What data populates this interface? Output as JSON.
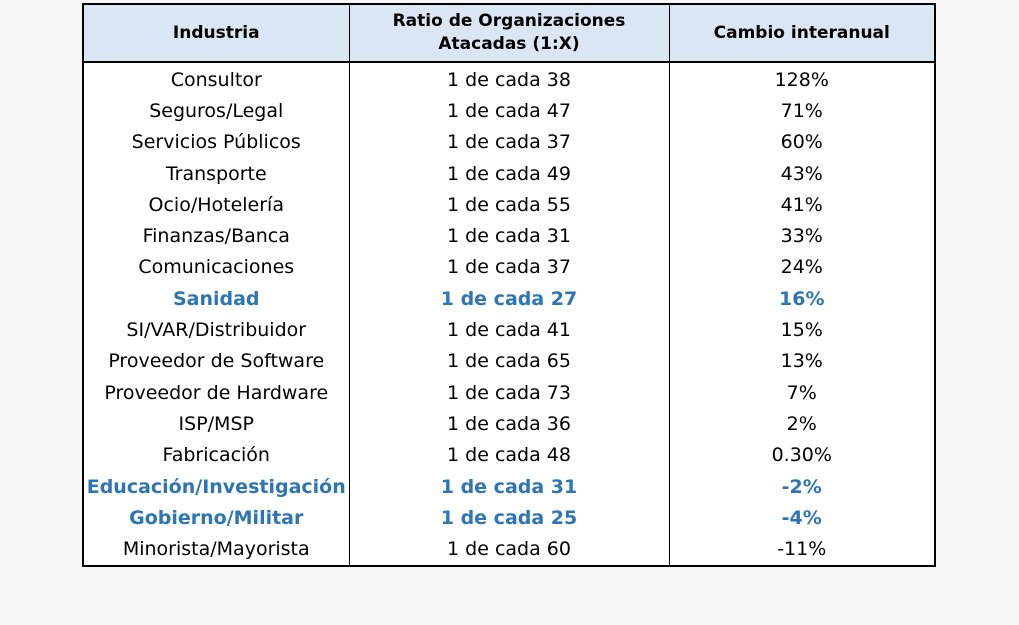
{
  "table": {
    "headers": [
      "Industria",
      "Ratio de Organizaciones Atacadas (1:X)",
      "Cambio interanual"
    ],
    "highlight_color": "#2e75b6",
    "header_bg": "#dbe6f4",
    "rows": [
      {
        "industry": "Consultor",
        "ratio": "1 de cada 38",
        "change": "128%",
        "highlight": false
      },
      {
        "industry": "Seguros/Legal",
        "ratio": "1 de cada 47",
        "change": "71%",
        "highlight": false
      },
      {
        "industry": "Servicios Públicos",
        "ratio": "1 de cada 37",
        "change": "60%",
        "highlight": false
      },
      {
        "industry": "Transporte",
        "ratio": "1 de cada 49",
        "change": "43%",
        "highlight": false
      },
      {
        "industry": "Ocio/Hotelería",
        "ratio": "1 de cada 55",
        "change": "41%",
        "highlight": false
      },
      {
        "industry": "Finanzas/Banca",
        "ratio": "1 de cada 31",
        "change": "33%",
        "highlight": false
      },
      {
        "industry": "Comunicaciones",
        "ratio": "1 de cada 37",
        "change": "24%",
        "highlight": false
      },
      {
        "industry": "Sanidad",
        "ratio": "1 de cada 27",
        "change": "16%",
        "highlight": true
      },
      {
        "industry": "SI/VAR/Distribuidor",
        "ratio": "1 de cada 41",
        "change": "15%",
        "highlight": false
      },
      {
        "industry": "Proveedor de Software",
        "ratio": "1 de cada 65",
        "change": "13%",
        "highlight": false
      },
      {
        "industry": "Proveedor de Hardware",
        "ratio": "1 de cada 73",
        "change": "7%",
        "highlight": false
      },
      {
        "industry": "ISP/MSP",
        "ratio": "1 de cada 36",
        "change": "2%",
        "highlight": false
      },
      {
        "industry": "Fabricación",
        "ratio": "1 de cada 48",
        "change": "0.30%",
        "highlight": false
      },
      {
        "industry": "Educación/Investigación",
        "ratio": "1 de cada 31",
        "change": "-2%",
        "highlight": true
      },
      {
        "industry": "Gobierno/Militar",
        "ratio": "1 de cada 25",
        "change": "-4%",
        "highlight": true
      },
      {
        "industry": "Minorista/Mayorista",
        "ratio": "1 de cada 60",
        "change": "-11%",
        "highlight": false
      }
    ]
  }
}
